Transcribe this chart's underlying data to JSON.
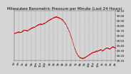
{
  "title": "Milwaukee Barometric Pressure per Minute (Last 24 Hours)",
  "line_color": "#dd0000",
  "bg_color": "#d4d4d4",
  "plot_bg_color": "#d4d4d4",
  "grid_color": "#888888",
  "ylim": [
    29.1,
    30.1
  ],
  "yticks": [
    29.1,
    29.2,
    29.3,
    29.4,
    29.5,
    29.6,
    29.7,
    29.8,
    29.9,
    30.0,
    30.1
  ],
  "num_points": 1440,
  "title_fontsize": 4.0,
  "tick_fontsize": 2.8,
  "marker_size": 0.4,
  "pressure_profile": [
    0.55,
    0.56,
    0.57,
    0.58,
    0.57,
    0.58,
    0.6,
    0.62,
    0.61,
    0.6,
    0.62,
    0.64,
    0.66,
    0.67,
    0.68,
    0.7,
    0.72,
    0.73,
    0.74,
    0.73,
    0.75,
    0.76,
    0.78,
    0.8,
    0.82,
    0.84,
    0.85,
    0.87,
    0.88,
    0.88,
    0.87,
    0.86,
    0.84,
    0.82,
    0.78,
    0.74,
    0.68,
    0.62,
    0.54,
    0.46,
    0.36,
    0.26,
    0.18,
    0.12,
    0.08,
    0.06,
    0.05,
    0.05,
    0.06,
    0.08,
    0.1,
    0.12,
    0.14,
    0.16,
    0.17,
    0.18,
    0.19,
    0.2,
    0.21,
    0.22,
    0.2,
    0.22,
    0.24,
    0.26,
    0.25,
    0.24,
    0.26,
    0.28,
    0.27,
    0.26
  ],
  "num_xtick_labels": 24,
  "x_tick_labels": [
    "5a",
    "6a",
    "7a",
    "8a",
    "9a",
    "10a",
    "11a",
    "12p",
    "1p",
    "2p",
    "3p",
    "4p",
    "5p",
    "6p",
    "7p",
    "8p",
    "9p",
    "10p",
    "11p",
    "12a",
    "1a",
    "2a",
    "3a",
    "4a"
  ]
}
